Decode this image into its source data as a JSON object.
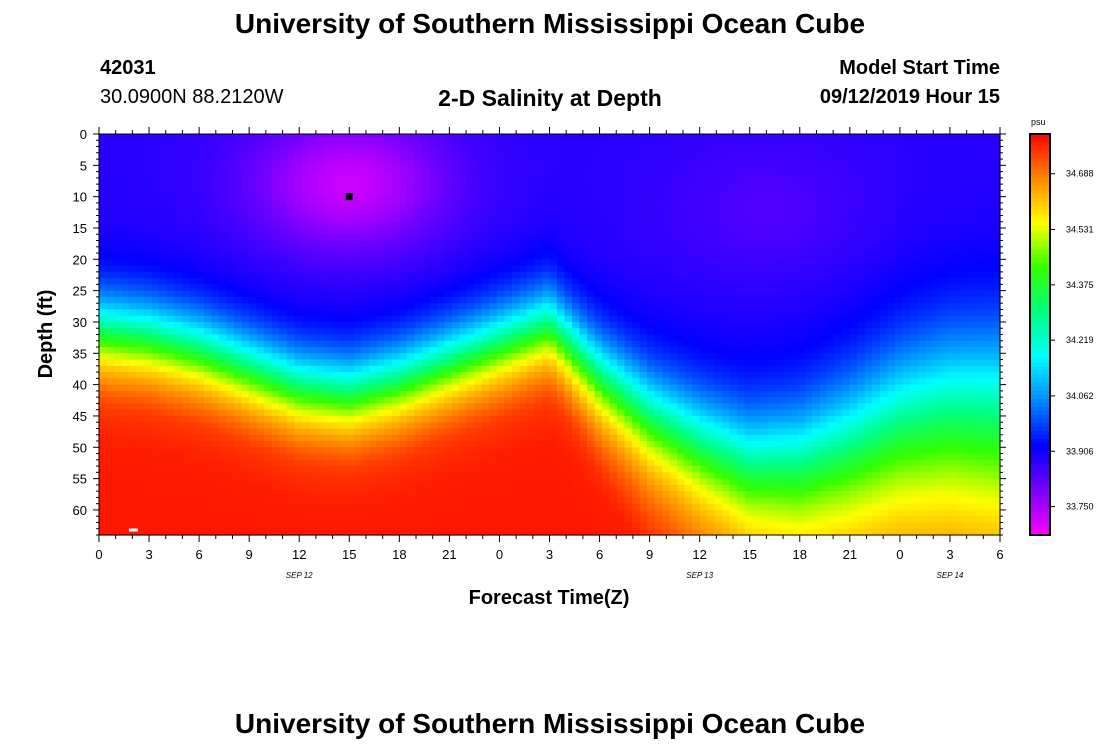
{
  "header": {
    "title_top": "University of Southern Mississippi Ocean Cube",
    "title_bottom": "University of Southern Mississippi Ocean Cube",
    "station_id": "42031",
    "station_location": "30.0900N 88.2120W",
    "plot_title": "2-D Salinity at Depth",
    "model_label": "Model Start Time",
    "model_time": "09/12/2019 Hour 15"
  },
  "chart_data": {
    "type": "heatmap",
    "title": "2-D Salinity at Depth",
    "xlabel": "Forecast Time(Z)",
    "ylabel": "Depth (ft)",
    "x_range": [
      0,
      54
    ],
    "x_unit": "hours since SEP 12 00Z",
    "y_range": [
      0,
      64
    ],
    "y_inverted": true,
    "x_ticks": [
      {
        "value": 0,
        "label": "0"
      },
      {
        "value": 3,
        "label": "3"
      },
      {
        "value": 6,
        "label": "6"
      },
      {
        "value": 9,
        "label": "9"
      },
      {
        "value": 12,
        "label": "12"
      },
      {
        "value": 15,
        "label": "15"
      },
      {
        "value": 18,
        "label": "18"
      },
      {
        "value": 21,
        "label": "21"
      },
      {
        "value": 24,
        "label": "0"
      },
      {
        "value": 27,
        "label": "3"
      },
      {
        "value": 30,
        "label": "6"
      },
      {
        "value": 33,
        "label": "9"
      },
      {
        "value": 36,
        "label": "12"
      },
      {
        "value": 39,
        "label": "15"
      },
      {
        "value": 42,
        "label": "18"
      },
      {
        "value": 45,
        "label": "21"
      },
      {
        "value": 48,
        "label": "0"
      },
      {
        "value": 51,
        "label": "3"
      },
      {
        "value": 54,
        "label": "6"
      }
    ],
    "day_labels": [
      {
        "value": 12,
        "label": "SEP 12"
      },
      {
        "value": 36,
        "label": "SEP 13"
      },
      {
        "value": 51,
        "label": "SEP 14"
      }
    ],
    "y_ticks": [
      0,
      5,
      10,
      15,
      20,
      25,
      30,
      35,
      40,
      45,
      50,
      55,
      60
    ],
    "colorbar": {
      "unit": "psu",
      "vmin": 33.67,
      "vmax": 34.8,
      "ticks": [
        "34.688",
        "34.531",
        "34.375",
        "34.219",
        "34.062",
        "33.906",
        "33.750"
      ],
      "colors": [
        "#ff00ff",
        "#7b00ff",
        "#0000ff",
        "#0087ff",
        "#00ffff",
        "#00ff7f",
        "#33ff00",
        "#ffff00",
        "#ff8800",
        "#ff0000"
      ]
    },
    "salinity_profile": {
      "surface_psu": 33.88,
      "surface_min_psu": 33.72,
      "bottom_max_psu": 34.78,
      "halocline_depth_ft_at": [
        {
          "hour": 0,
          "depth": 31
        },
        {
          "hour": 3,
          "depth": 32
        },
        {
          "hour": 6,
          "depth": 34
        },
        {
          "hour": 9,
          "depth": 37
        },
        {
          "hour": 12,
          "depth": 40
        },
        {
          "hour": 15,
          "depth": 41
        },
        {
          "hour": 18,
          "depth": 39
        },
        {
          "hour": 21,
          "depth": 36
        },
        {
          "hour": 24,
          "depth": 33
        },
        {
          "hour": 27,
          "depth": 30
        },
        {
          "hour": 30,
          "depth": 38
        },
        {
          "hour": 33,
          "depth": 44
        },
        {
          "hour": 36,
          "depth": 48
        },
        {
          "hour": 39,
          "depth": 51
        },
        {
          "hour": 42,
          "depth": 50
        },
        {
          "hour": 45,
          "depth": 46
        },
        {
          "hour": 48,
          "depth": 41
        },
        {
          "hour": 51,
          "depth": 38
        },
        {
          "hour": 54,
          "depth": 37
        }
      ],
      "fresh_minima": [
        {
          "hour": 15,
          "depth": 8,
          "psu": 33.72
        },
        {
          "hour": 40,
          "depth": 12,
          "psu": 33.84
        }
      ]
    },
    "markers": [
      {
        "hour": 15,
        "depth": 10,
        "color": "#000000"
      },
      {
        "hour": 2,
        "depth": 64,
        "color": "#ffffff"
      }
    ]
  }
}
